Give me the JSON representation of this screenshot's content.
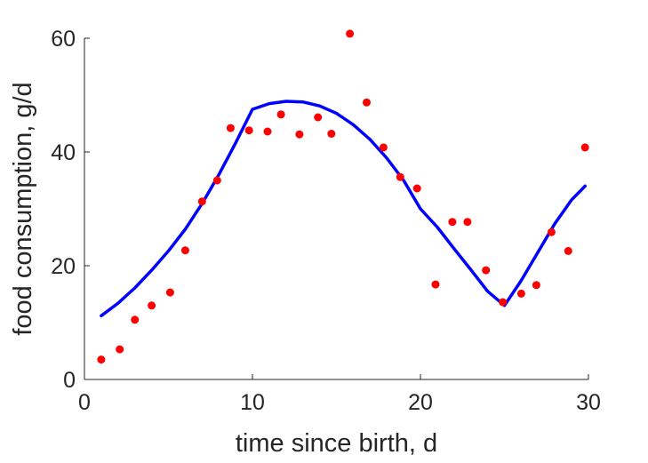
{
  "chart_data": {
    "type": "scatter",
    "xlabel": "time since birth, d",
    "ylabel": "food consumption, g/d",
    "xlim": [
      0,
      30
    ],
    "ylim": [
      0,
      60
    ],
    "xticks": [
      "0",
      "10",
      "20",
      "30"
    ],
    "yticks": [
      "0",
      "20",
      "40",
      "60"
    ],
    "grid": false,
    "series": [
      {
        "kind": "scatter",
        "color": "#ff0000",
        "x": [
          1,
          2.1,
          3,
          4,
          5.1,
          6,
          7,
          7.9,
          8.7,
          9.8,
          10.9,
          11.7,
          12.8,
          13.9,
          14.7,
          15.8,
          16.8,
          17.8,
          18.8,
          19.8,
          20.9,
          21.9,
          22.8,
          23.9,
          24.9,
          26,
          26.9,
          27.8,
          28.8,
          29.8
        ],
        "y": [
          3.5,
          5.3,
          10.5,
          13,
          15.3,
          22.7,
          31.3,
          35,
          44.2,
          43.8,
          43.6,
          46.6,
          43.1,
          46.1,
          43.2,
          60.8,
          48.7,
          40.8,
          35.6,
          33.6,
          16.7,
          27.7,
          27.7,
          19.2,
          13.6,
          15.1,
          16.6,
          25.9,
          22.6,
          40.8
        ]
      },
      {
        "kind": "line",
        "color": "#0000ff",
        "x": [
          1,
          2,
          3,
          4,
          5,
          6,
          7,
          8,
          9,
          10,
          11,
          12,
          13,
          14,
          15,
          16,
          17,
          18,
          19,
          20,
          21,
          22,
          23,
          24,
          25,
          26,
          27,
          28,
          29,
          29.8
        ],
        "y": [
          11.2,
          13.4,
          16.1,
          19.2,
          22.6,
          26.4,
          30.9,
          36,
          41.6,
          47.5,
          48.5,
          48.9,
          48.8,
          48.1,
          46.8,
          44.8,
          42.2,
          38.9,
          35,
          30,
          26.8,
          23,
          19.3,
          15.5,
          13,
          17.4,
          22.4,
          27.4,
          31.6,
          34
        ]
      }
    ]
  }
}
